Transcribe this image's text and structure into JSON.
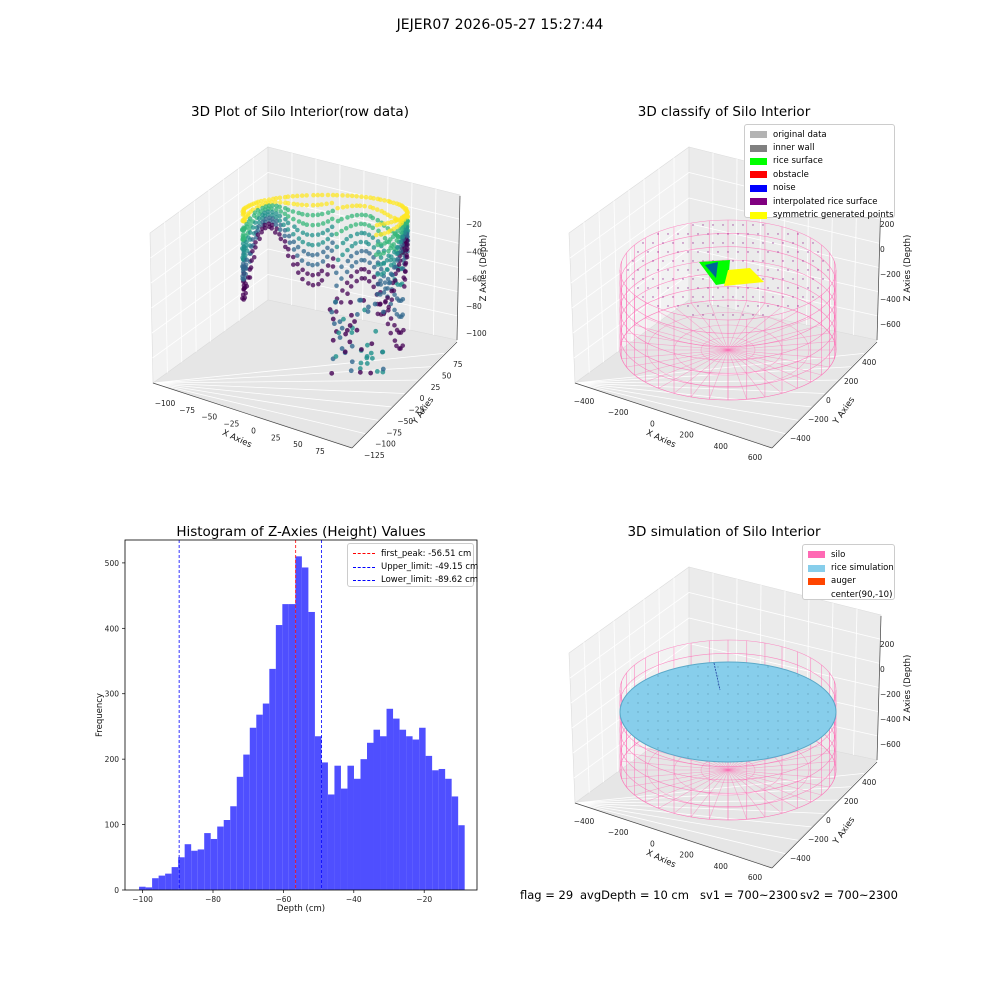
{
  "figure": {
    "title": "JEJER07 2026-05-27 15:27:44"
  },
  "panels": {
    "raw": {
      "title": "3D Plot of Silo Interior(row data)",
      "xlabel": "X Axies",
      "ylabel": "Y Axies",
      "zlabel": "Z Axies (Depth)",
      "xticks": [
        "−100",
        "−75",
        "−50",
        "−25",
        "0",
        "25",
        "50",
        "75"
      ],
      "yticks": [
        "−125",
        "−100",
        "−75",
        "−50",
        "−25",
        "0",
        "25",
        "50",
        "75"
      ],
      "zticks": [
        "−20",
        "−40",
        "−60",
        "−80",
        "−100"
      ],
      "colormap": [
        "#440154",
        "#31688e",
        "#21918c",
        "#35b779",
        "#fde725"
      ]
    },
    "classify": {
      "title": "3D classify of Silo Interior",
      "xlabel": "X Axies",
      "ylabel": "Y Axies",
      "zlabel": "Z Axies (Depth)",
      "xticks": [
        "−400",
        "−200",
        "0",
        "200",
        "400",
        "600"
      ],
      "yticks": [
        "−400",
        "−200",
        "0",
        "200",
        "400"
      ],
      "zticks": [
        "200",
        "0",
        "−200",
        "−400",
        "−600"
      ],
      "legend": [
        {
          "label": "original data",
          "color": "#b3b3b3"
        },
        {
          "label": "inner wall",
          "color": "#808080"
        },
        {
          "label": "rice surface",
          "color": "#00ff00"
        },
        {
          "label": "obstacle",
          "color": "#ff0000"
        },
        {
          "label": "noise",
          "color": "#0000ff"
        },
        {
          "label": "interpolated rice surface",
          "color": "#800080"
        },
        {
          "label": "symmetric generated points",
          "color": "#ffff00"
        }
      ]
    },
    "simulation": {
      "title": "3D simulation of Silo Interior",
      "xlabel": "X Axies",
      "ylabel": "Y Axies",
      "zlabel": "Z Axies (Depth)",
      "xticks": [
        "−400",
        "−200",
        "0",
        "200",
        "400",
        "600"
      ],
      "yticks": [
        "−400",
        "−200",
        "0",
        "200",
        "400"
      ],
      "zticks": [
        "200",
        "0",
        "−200",
        "−400",
        "−600"
      ],
      "legend": [
        {
          "label": "silo",
          "color": "#ff69b4"
        },
        {
          "label": "rice simulation",
          "color": "#87ceeb"
        },
        {
          "label": "auger",
          "color": "#ff4500"
        },
        {
          "label": "center(90,-10)",
          "color": ""
        }
      ]
    }
  },
  "chart_data": {
    "type": "bar",
    "title": "Histogram of Z-Axies (Height) Values",
    "xlabel": "Depth (cm)",
    "ylabel": "Frequency",
    "xlim": [
      -105,
      -5
    ],
    "ylim": [
      0,
      535
    ],
    "xticks": [
      -100,
      -80,
      -60,
      -40,
      -20
    ],
    "yticks": [
      0,
      100,
      200,
      300,
      400,
      500
    ],
    "bar_color": "#4b4bff",
    "bin_width": 1.85,
    "bin_start": -101.0,
    "values": [
      5,
      4,
      18,
      22,
      25,
      35,
      50,
      70,
      60,
      62,
      87,
      78,
      97,
      107,
      128,
      173,
      207,
      248,
      268,
      285,
      338,
      405,
      437,
      437,
      510,
      493,
      425,
      235,
      195,
      146,
      190,
      155,
      190,
      170,
      200,
      225,
      245,
      235,
      277,
      262,
      245,
      235,
      230,
      248,
      205,
      183,
      185,
      170,
      143,
      99
    ],
    "lines": [
      {
        "label": "first_peak: -56.51 cm",
        "value": -56.51,
        "color": "#ff0000"
      },
      {
        "label": "Upper_limit: -49.15 cm",
        "value": -49.15,
        "color": "#0000ff"
      },
      {
        "label": "Lower_limit: -89.62 cm",
        "value": -89.62,
        "color": "#0000ff"
      }
    ]
  },
  "footer": {
    "flag": "flag = 29",
    "avg_depth": "avgDepth = 10 cm",
    "sv1": "sv1 = 700~2300",
    "sv2": "sv2 = 700~2300"
  }
}
